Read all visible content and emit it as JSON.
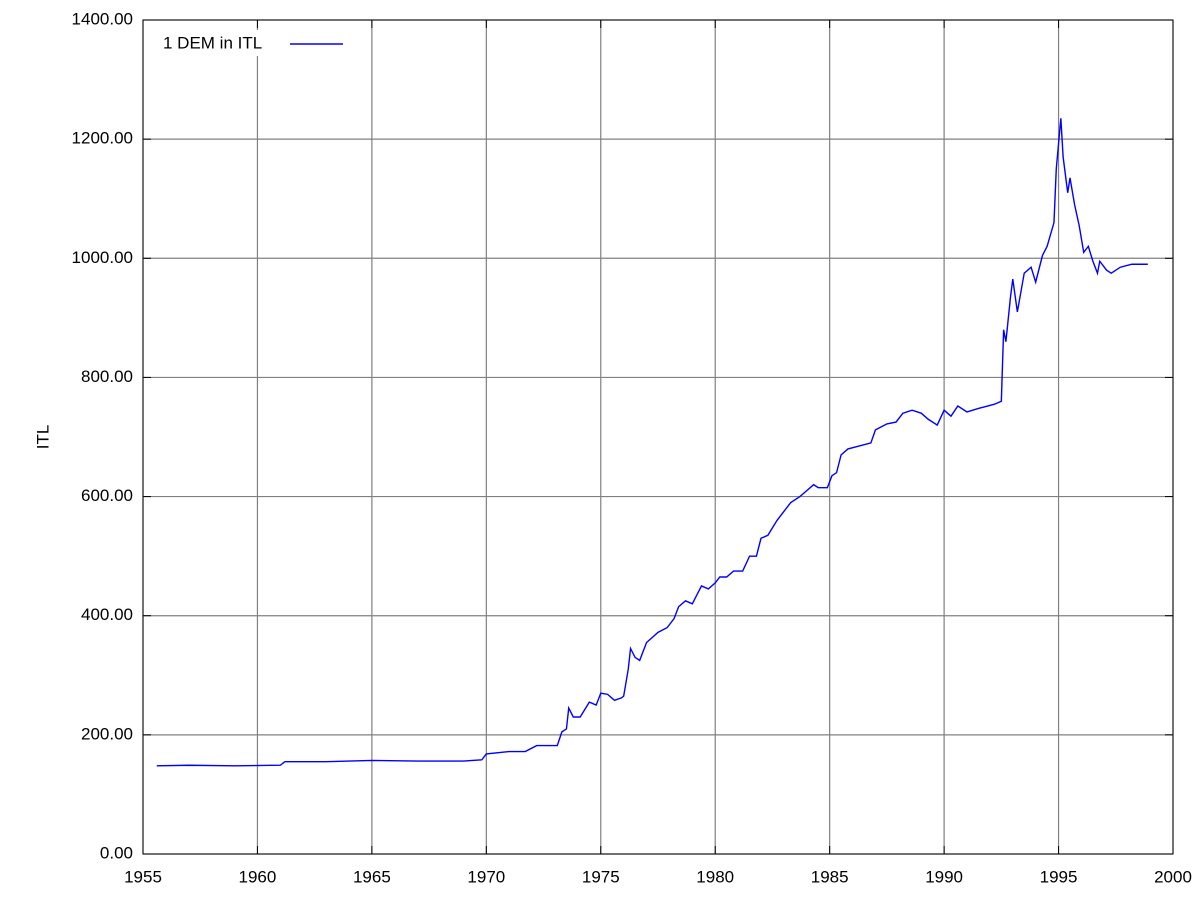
{
  "chart_data": {
    "type": "line",
    "y_label": "ITL",
    "xlim": [
      1955,
      2000
    ],
    "xticks": [
      1955,
      1960,
      1965,
      1970,
      1975,
      1980,
      1985,
      1990,
      1995,
      2000
    ],
    "ylim": [
      0,
      1400
    ],
    "yticks": [
      {
        "value": 0,
        "label": "0.00"
      },
      {
        "value": 200,
        "label": "200.00"
      },
      {
        "value": 400,
        "label": "400.00"
      },
      {
        "value": 600,
        "label": "600.00"
      },
      {
        "value": 800,
        "label": "800.00"
      },
      {
        "value": 1000,
        "label": "1000.00"
      },
      {
        "value": 1200,
        "label": "1200.00"
      },
      {
        "value": 1400,
        "label": "1400.00"
      }
    ],
    "grid": true,
    "legend": "upper left",
    "x": [
      1955.6,
      1957,
      1959,
      1961,
      1961.2,
      1963,
      1965,
      1967,
      1969,
      1969.8,
      1970,
      1971,
      1971.7,
      1972.2,
      1972.9,
      1973.1,
      1973.3,
      1973.5,
      1973.6,
      1973.8,
      1974.1,
      1974.5,
      1974.8,
      1975.0,
      1975.3,
      1975.6,
      1975.9,
      1976.0,
      1976.2,
      1976.3,
      1976.5,
      1976.7,
      1977.0,
      1977.5,
      1977.9,
      1978.2,
      1978.4,
      1978.7,
      1979.0,
      1979.2,
      1979.4,
      1979.7,
      1980.0,
      1980.2,
      1980.5,
      1980.8,
      1981.2,
      1981.5,
      1981.8,
      1982.0,
      1982.3,
      1982.7,
      1983.0,
      1983.3,
      1983.7,
      1984.0,
      1984.3,
      1984.5,
      1984.9,
      1985.1,
      1985.3,
      1985.5,
      1985.8,
      1986.3,
      1986.8,
      1987.0,
      1987.5,
      1987.9,
      1988.2,
      1988.6,
      1989.0,
      1989.3,
      1989.7,
      1990.0,
      1990.3,
      1990.6,
      1991.0,
      1991.5,
      1991.9,
      1992.2,
      1992.5,
      1992.6,
      1992.7,
      1992.9,
      1993.0,
      1993.2,
      1993.5,
      1993.8,
      1994.0,
      1994.3,
      1994.5,
      1994.8,
      1994.9,
      1995.1,
      1995.2,
      1995.4,
      1995.5,
      1995.7,
      1995.9,
      1996.1,
      1996.3,
      1996.5,
      1996.7,
      1996.8,
      1997.1,
      1997.3,
      1997.7,
      1998.2,
      1998.9
    ],
    "series": [
      {
        "name": "1 DEM in ITL",
        "color": "#0000ff",
        "values": [
          148,
          149,
          148,
          149,
          155,
          155,
          157,
          156,
          156,
          158,
          168,
          172,
          172,
          182,
          182,
          182,
          205,
          210,
          245,
          230,
          230,
          255,
          250,
          270,
          268,
          258,
          262,
          265,
          310,
          345,
          330,
          325,
          355,
          372,
          380,
          395,
          415,
          425,
          420,
          435,
          450,
          445,
          455,
          465,
          465,
          475,
          475,
          500,
          500,
          530,
          535,
          560,
          575,
          590,
          600,
          610,
          620,
          615,
          615,
          635,
          640,
          670,
          680,
          685,
          690,
          712,
          722,
          725,
          740,
          745,
          740,
          730,
          720,
          745,
          735,
          752,
          742,
          748,
          752,
          755,
          760,
          880,
          860,
          935,
          965,
          910,
          975,
          985,
          960,
          1005,
          1020,
          1060,
          1150,
          1235,
          1170,
          1110,
          1135,
          1090,
          1055,
          1010,
          1020,
          995,
          975,
          995,
          980,
          975,
          985,
          990,
          990
        ]
      }
    ]
  }
}
